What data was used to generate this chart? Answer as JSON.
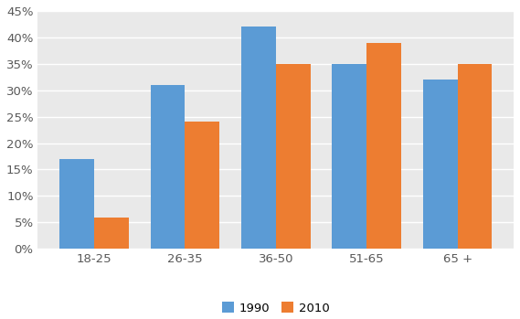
{
  "categories": [
    "18-25",
    "26-35",
    "36-50",
    "51-65",
    "65 +"
  ],
  "values_1990": [
    0.17,
    0.31,
    0.42,
    0.35,
    0.32
  ],
  "values_2010": [
    0.06,
    0.24,
    0.35,
    0.39,
    0.35
  ],
  "color_1990": "#5B9BD5",
  "color_2010": "#ED7D31",
  "ylim": [
    0,
    0.45
  ],
  "yticks": [
    0.0,
    0.05,
    0.1,
    0.15,
    0.2,
    0.25,
    0.3,
    0.35,
    0.4,
    0.45
  ],
  "legend_labels": [
    "1990",
    "2010"
  ],
  "bar_width": 0.38,
  "plot_bg_color": "#E9E9E9",
  "outer_bg_color": "#FFFFFF",
  "grid_color": "#FFFFFF"
}
